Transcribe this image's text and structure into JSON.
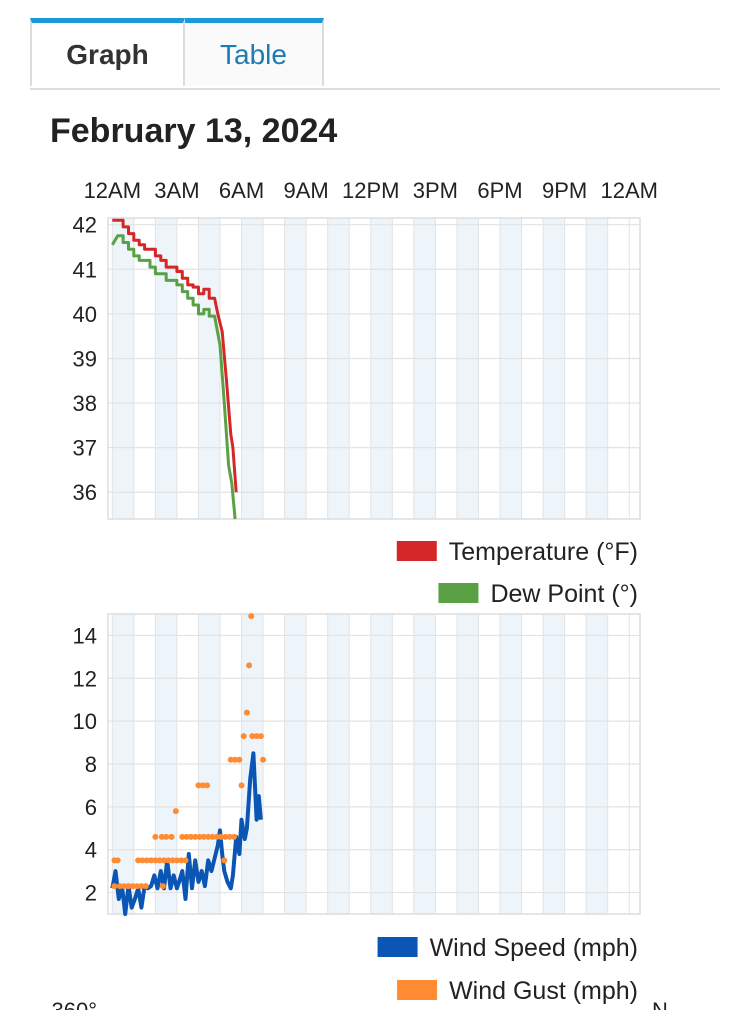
{
  "tabs": [
    {
      "label": "Graph",
      "active": true
    },
    {
      "label": "Table",
      "active": false
    }
  ],
  "date_title": "February 13, 2024",
  "colors": {
    "temperature": "#d62728",
    "dew_point": "#5aa146",
    "wind_speed": "#0b56b5",
    "wind_gust": "#ff8c33",
    "band": "#edf4fa",
    "grid": "#e3e3e3",
    "tab_accent": "#1a9bd7"
  },
  "time_axis": {
    "labels": [
      "12AM",
      "3AM",
      "6AM",
      "9AM",
      "12PM",
      "3PM",
      "6PM",
      "9PM",
      "12AM"
    ],
    "hours": [
      0,
      3,
      6,
      9,
      12,
      15,
      18,
      21,
      24
    ],
    "range": [
      -0.2,
      24.5
    ]
  },
  "bottom_partial_labels": [
    "360°",
    "N"
  ],
  "chart_data": [
    {
      "type": "line",
      "y_ticks": [
        36,
        37,
        38,
        39,
        40,
        41,
        42
      ],
      "ylim": [
        35.4,
        42.15
      ],
      "grid": true,
      "legend_placement": "bottom-right",
      "series": [
        {
          "name": "Temperature (°F)",
          "color": "#d62728",
          "points": [
            [
              0,
              42.1
            ],
            [
              0.5,
              42.1
            ],
            [
              0.5,
              41.95
            ],
            [
              0.75,
              41.95
            ],
            [
              0.75,
              41.8
            ],
            [
              1.0,
              41.8
            ],
            [
              1.0,
              41.65
            ],
            [
              1.25,
              41.65
            ],
            [
              1.25,
              41.55
            ],
            [
              1.5,
              41.55
            ],
            [
              1.5,
              41.45
            ],
            [
              2.0,
              41.45
            ],
            [
              2.0,
              41.3
            ],
            [
              2.25,
              41.3
            ],
            [
              2.25,
              41.2
            ],
            [
              2.5,
              41.2
            ],
            [
              2.5,
              41.05
            ],
            [
              3.0,
              41.05
            ],
            [
              3.0,
              40.95
            ],
            [
              3.25,
              40.95
            ],
            [
              3.25,
              40.8
            ],
            [
              3.5,
              40.8
            ],
            [
              3.5,
              40.65
            ],
            [
              3.75,
              40.65
            ],
            [
              3.75,
              40.6
            ],
            [
              4.0,
              40.6
            ],
            [
              4.0,
              40.45
            ],
            [
              4.25,
              40.45
            ],
            [
              4.25,
              40.55
            ],
            [
              4.5,
              40.55
            ],
            [
              4.5,
              40.35
            ],
            [
              4.75,
              40.35
            ],
            [
              4.9,
              40.0
            ],
            [
              5.1,
              39.6
            ],
            [
              5.3,
              38.5
            ],
            [
              5.5,
              37.3
            ],
            [
              5.6,
              37.0
            ],
            [
              5.75,
              36.0
            ]
          ]
        },
        {
          "name": "Dew Point (°)",
          "color": "#5aa146",
          "points": [
            [
              0,
              41.55
            ],
            [
              0.25,
              41.75
            ],
            [
              0.5,
              41.75
            ],
            [
              0.5,
              41.6
            ],
            [
              0.75,
              41.6
            ],
            [
              0.75,
              41.45
            ],
            [
              1.0,
              41.45
            ],
            [
              1.0,
              41.3
            ],
            [
              1.25,
              41.3
            ],
            [
              1.25,
              41.2
            ],
            [
              1.75,
              41.2
            ],
            [
              1.75,
              41.05
            ],
            [
              2.0,
              41.05
            ],
            [
              2.0,
              40.9
            ],
            [
              2.5,
              40.9
            ],
            [
              2.5,
              40.75
            ],
            [
              3.0,
              40.75
            ],
            [
              3.0,
              40.65
            ],
            [
              3.25,
              40.65
            ],
            [
              3.25,
              40.5
            ],
            [
              3.5,
              40.5
            ],
            [
              3.5,
              40.35
            ],
            [
              3.75,
              40.35
            ],
            [
              3.75,
              40.2
            ],
            [
              4.0,
              40.2
            ],
            [
              4.0,
              40.0
            ],
            [
              4.25,
              40.0
            ],
            [
              4.25,
              40.1
            ],
            [
              4.5,
              40.1
            ],
            [
              4.5,
              39.95
            ],
            [
              4.75,
              39.95
            ],
            [
              5.0,
              39.3
            ],
            [
              5.2,
              38.0
            ],
            [
              5.4,
              36.6
            ],
            [
              5.55,
              36.2
            ],
            [
              5.7,
              35.4
            ]
          ]
        }
      ]
    },
    {
      "type": "line",
      "y_ticks": [
        2,
        4,
        6,
        8,
        10,
        12,
        14
      ],
      "ylim": [
        1.0,
        15.0
      ],
      "grid": true,
      "legend_placement": "bottom-right",
      "series": [
        {
          "name": "Wind Speed (mph)",
          "color": "#0b56b5",
          "style": "line",
          "points": [
            [
              0,
              2.2
            ],
            [
              0.15,
              3.0
            ],
            [
              0.3,
              1.7
            ],
            [
              0.45,
              2.3
            ],
            [
              0.6,
              1.0
            ],
            [
              0.75,
              2.3
            ],
            [
              0.9,
              1.3
            ],
            [
              1.05,
              1.7
            ],
            [
              1.2,
              2.2
            ],
            [
              1.35,
              1.3
            ],
            [
              1.5,
              2.3
            ],
            [
              1.65,
              2.2
            ],
            [
              1.8,
              2.3
            ],
            [
              1.95,
              2.8
            ],
            [
              2.1,
              2.2
            ],
            [
              2.25,
              3.0
            ],
            [
              2.4,
              2.2
            ],
            [
              2.55,
              3.5
            ],
            [
              2.7,
              2.2
            ],
            [
              2.85,
              2.8
            ],
            [
              3.0,
              2.2
            ],
            [
              3.1,
              2.5
            ],
            [
              3.25,
              3.0
            ],
            [
              3.4,
              1.7
            ],
            [
              3.55,
              3.8
            ],
            [
              3.7,
              2.2
            ],
            [
              3.85,
              3.5
            ],
            [
              4.0,
              2.5
            ],
            [
              4.15,
              3.0
            ],
            [
              4.3,
              2.3
            ],
            [
              4.45,
              3.5
            ],
            [
              4.6,
              3.0
            ],
            [
              4.75,
              3.6
            ],
            [
              4.9,
              4.2
            ],
            [
              5.0,
              4.9
            ],
            [
              5.1,
              3.8
            ],
            [
              5.2,
              3.0
            ],
            [
              5.35,
              2.5
            ],
            [
              5.5,
              2.2
            ],
            [
              5.6,
              2.8
            ],
            [
              5.75,
              4.6
            ],
            [
              5.9,
              3.8
            ],
            [
              6.0,
              5.4
            ],
            [
              6.15,
              4.5
            ],
            [
              6.25,
              5.0
            ],
            [
              6.4,
              7.3
            ],
            [
              6.55,
              8.5
            ],
            [
              6.7,
              5.4
            ],
            [
              6.8,
              6.5
            ],
            [
              6.9,
              5.4
            ]
          ]
        },
        {
          "name": "Wind Gust (mph)",
          "color": "#ff8c33",
          "style": "dots",
          "points": [
            [
              0.1,
              3.5
            ],
            [
              0.25,
              3.5
            ],
            [
              0.1,
              2.3
            ],
            [
              0.35,
              2.3
            ],
            [
              0.55,
              2.3
            ],
            [
              0.75,
              2.3
            ],
            [
              0.95,
              2.3
            ],
            [
              1.15,
              2.3
            ],
            [
              1.35,
              2.3
            ],
            [
              1.55,
              2.3
            ],
            [
              1.2,
              3.5
            ],
            [
              1.4,
              3.5
            ],
            [
              1.6,
              3.5
            ],
            [
              1.8,
              3.5
            ],
            [
              2.0,
              3.5
            ],
            [
              2.2,
              3.5
            ],
            [
              2.4,
              3.5
            ],
            [
              2.6,
              3.5
            ],
            [
              2.8,
              3.5
            ],
            [
              3.0,
              3.5
            ],
            [
              3.2,
              3.5
            ],
            [
              3.4,
              3.5
            ],
            [
              2.0,
              4.6
            ],
            [
              2.3,
              4.6
            ],
            [
              2.5,
              4.6
            ],
            [
              2.75,
              4.6
            ],
            [
              2.95,
              5.8
            ],
            [
              3.25,
              4.6
            ],
            [
              3.45,
              4.6
            ],
            [
              3.65,
              4.6
            ],
            [
              3.85,
              4.6
            ],
            [
              4.05,
              4.6
            ],
            [
              4.25,
              4.6
            ],
            [
              4.45,
              4.6
            ],
            [
              4.65,
              4.6
            ],
            [
              4.85,
              4.6
            ],
            [
              5.05,
              4.6
            ],
            [
              5.25,
              4.6
            ],
            [
              5.45,
              4.6
            ],
            [
              5.65,
              4.6
            ],
            [
              2.35,
              2.3
            ],
            [
              4.0,
              7.0
            ],
            [
              4.2,
              7.0
            ],
            [
              4.4,
              7.0
            ],
            [
              5.2,
              3.5
            ],
            [
              5.5,
              8.2
            ],
            [
              5.7,
              8.2
            ],
            [
              5.9,
              8.2
            ],
            [
              6.0,
              7.0
            ],
            [
              6.1,
              9.3
            ],
            [
              6.25,
              10.4
            ],
            [
              6.35,
              12.6
            ],
            [
              6.45,
              14.9
            ],
            [
              6.5,
              9.3
            ],
            [
              6.7,
              9.3
            ],
            [
              6.9,
              9.3
            ],
            [
              7.0,
              8.2
            ]
          ]
        }
      ]
    }
  ]
}
